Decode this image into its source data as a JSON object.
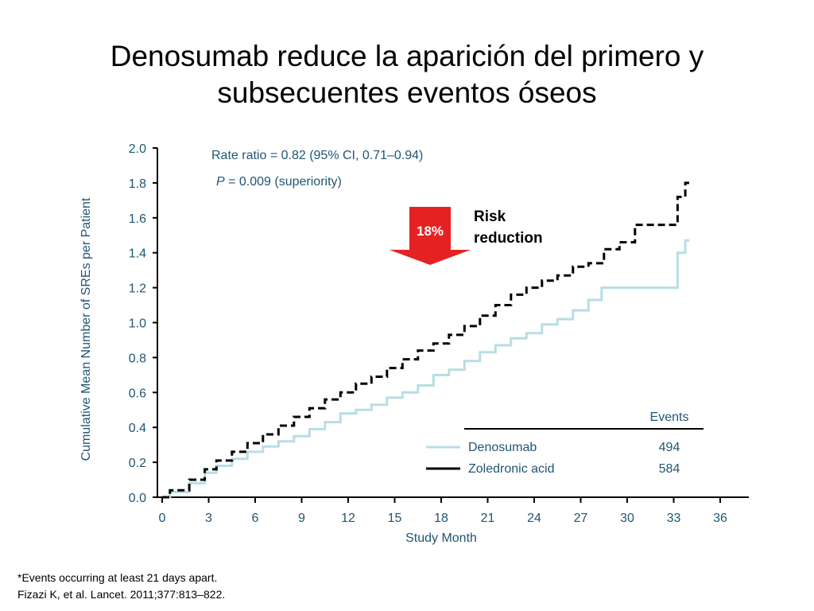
{
  "slide": {
    "title_line1": "Denosumab reduce la aparición del primero y",
    "title_line2": "subsecuentes eventos óseos",
    "footnote_line1": "*Events occurring at least 21 days apart.",
    "footnote_line2": "Fizazi K, et al. Lancet. 2011;377:813–822."
  },
  "colors": {
    "axis_text": "#1f5673",
    "denosumab": "#b8dde6",
    "zoledronic": "#000000",
    "arrow": "#e52222",
    "arrow_text": "#ffffff"
  },
  "chart_data": {
    "type": "line",
    "xlabel": "Study Month",
    "ylabel": "Cumulative Mean Number of SREs per Patient",
    "xlim": [
      0,
      36
    ],
    "ylim": [
      0,
      2.0
    ],
    "xticks": [
      "0",
      "3",
      "6",
      "9",
      "12",
      "15",
      "18",
      "21",
      "24",
      "27",
      "30",
      "33",
      "36"
    ],
    "yticks": [
      "0.0",
      "0.2",
      "0.4",
      "0.6",
      "0.8",
      "1.0",
      "1.2",
      "1.4",
      "1.6",
      "1.8",
      "2.0"
    ],
    "annotation_rate_ratio": "Rate ratio = 0.82 (95% CI, 0.71–0.94)",
    "annotation_p_symbol": "P",
    "annotation_p_value": " = 0.009 (superiority)",
    "risk_percent": "18%",
    "risk_label_line1": "Risk",
    "risk_label_line2": "reduction",
    "legend_header": "Events",
    "series": [
      {
        "name": "Denosumab",
        "events": "494",
        "style": "solid",
        "x": [
          0,
          1,
          2.5,
          3,
          4,
          5,
          6,
          7,
          8,
          9,
          10,
          11,
          12,
          13,
          14,
          15,
          16,
          17,
          18,
          19,
          20,
          21,
          22,
          23,
          24,
          25,
          26,
          27,
          28,
          28.7,
          30,
          31,
          32,
          33,
          33.5,
          34
        ],
        "y": [
          0,
          0.03,
          0.08,
          0.14,
          0.18,
          0.22,
          0.26,
          0.29,
          0.32,
          0.35,
          0.39,
          0.43,
          0.48,
          0.5,
          0.53,
          0.57,
          0.6,
          0.64,
          0.7,
          0.73,
          0.78,
          0.83,
          0.87,
          0.91,
          0.94,
          0.99,
          1.02,
          1.07,
          1.13,
          1.2,
          1.2,
          1.2,
          1.2,
          1.2,
          1.4,
          1.47
        ]
      },
      {
        "name": "Zoledronic acid",
        "events": "584",
        "style": "dashed",
        "x": [
          0,
          1,
          2.5,
          3,
          4,
          5,
          6,
          7,
          8,
          9,
          10,
          11,
          12,
          13,
          14,
          15,
          16,
          17,
          18,
          19,
          20,
          21,
          22,
          23,
          24,
          25,
          26,
          27,
          28,
          29,
          30,
          31,
          32,
          33,
          33.5,
          34
        ],
        "y": [
          0,
          0.04,
          0.1,
          0.16,
          0.21,
          0.26,
          0.31,
          0.36,
          0.41,
          0.46,
          0.51,
          0.56,
          0.6,
          0.65,
          0.69,
          0.74,
          0.79,
          0.84,
          0.88,
          0.93,
          0.98,
          1.04,
          1.1,
          1.16,
          1.2,
          1.24,
          1.27,
          1.32,
          1.34,
          1.42,
          1.46,
          1.56,
          1.56,
          1.56,
          1.72,
          1.8
        ]
      }
    ]
  }
}
